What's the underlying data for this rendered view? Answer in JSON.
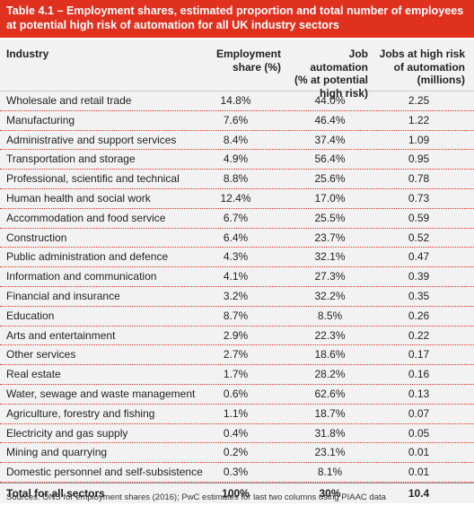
{
  "title": "Table 4.1 – Employment shares, estimated proportion and total number of employees at potential high risk of automation for all UK industry sectors",
  "headers": {
    "industry": "Industry",
    "employment": [
      "Employment",
      "share (%)"
    ],
    "job_automation": [
      "Job automation",
      "(% at potential",
      "high risk)"
    ],
    "jobs_high_risk": [
      "Jobs at high risk",
      "of automation",
      "(millions)"
    ]
  },
  "rows": [
    {
      "industry": "Wholesale and retail trade",
      "employment": "14.8%",
      "automation": "44.0%",
      "jobs": "2.25"
    },
    {
      "industry": "Manufacturing",
      "employment": "7.6%",
      "automation": "46.4%",
      "jobs": "1.22"
    },
    {
      "industry": "Administrative and support services",
      "employment": "8.4%",
      "automation": "37.4%",
      "jobs": "1.09"
    },
    {
      "industry": "Transportation and storage",
      "employment": "4.9%",
      "automation": "56.4%",
      "jobs": "0.95"
    },
    {
      "industry": "Professional, scientific and technical",
      "employment": "8.8%",
      "automation": "25.6%",
      "jobs": "0.78"
    },
    {
      "industry": "Human health and social work",
      "employment": "12.4%",
      "automation": "17.0%",
      "jobs": "0.73"
    },
    {
      "industry": "Accommodation and food service",
      "employment": "6.7%",
      "automation": "25.5%",
      "jobs": "0.59"
    },
    {
      "industry": "Construction",
      "employment": "6.4%",
      "automation": "23.7%",
      "jobs": "0.52"
    },
    {
      "industry": "Public administration and defence",
      "employment": "4.3%",
      "automation": "32.1%",
      "jobs": "0.47"
    },
    {
      "industry": "Information and communication",
      "employment": "4.1%",
      "automation": "27.3%",
      "jobs": "0.39"
    },
    {
      "industry": "Financial and insurance",
      "employment": "3.2%",
      "automation": "32.2%",
      "jobs": "0.35"
    },
    {
      "industry": "Education",
      "employment": "8.7%",
      "automation": "8.5%",
      "jobs": "0.26"
    },
    {
      "industry": "Arts and entertainment",
      "employment": "2.9%",
      "automation": "22.3%",
      "jobs": "0.22"
    },
    {
      "industry": "Other services",
      "employment": "2.7%",
      "automation": "18.6%",
      "jobs": "0.17"
    },
    {
      "industry": "Real estate",
      "employment": "1.7%",
      "automation": "28.2%",
      "jobs": "0.16"
    },
    {
      "industry": "Water, sewage and waste management",
      "employment": "0.6%",
      "automation": "62.6%",
      "jobs": "0.13"
    },
    {
      "industry": "Agriculture, forestry and fishing",
      "employment": "1.1%",
      "automation": "18.7%",
      "jobs": "0.07"
    },
    {
      "industry": "Electricity and gas supply",
      "employment": "0.4%",
      "automation": "31.8%",
      "jobs": "0.05"
    },
    {
      "industry": "Mining and quarrying",
      "employment": "0.2%",
      "automation": "23.1%",
      "jobs": "0.01"
    },
    {
      "industry": "Domestic personnel and self-subsistence",
      "employment": "0.3%",
      "automation": "8.1%",
      "jobs": "0.01"
    }
  ],
  "total": {
    "industry": "Total for all sectors",
    "employment": "100%",
    "automation": "30%",
    "jobs": "10.4"
  },
  "source": "Sources: ONS for employment shares (2016); PwC estimates for last two columns using PIAAC data",
  "colors": {
    "accent": "#e0301e",
    "table_bg": "#f2f2f2"
  }
}
